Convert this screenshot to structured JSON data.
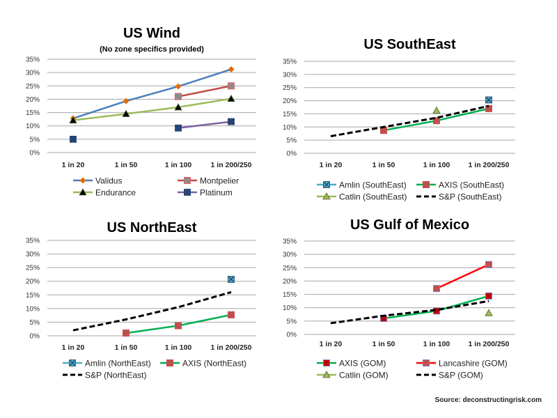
{
  "source_label": "Source: deconstructingrisk.com",
  "chart_data": [
    {
      "id": "us-wind",
      "type": "line",
      "title": "US Wind",
      "subtitle": "(No zone specifics provided)",
      "categories": [
        "1 in 20",
        "1 in 50",
        "1 in 100",
        "1 in 200/250"
      ],
      "xlabel": "",
      "ylabel": "",
      "ylim": [
        0,
        35
      ],
      "yticks": [
        "0%",
        "5%",
        "10%",
        "15%",
        "20%",
        "25%",
        "30%",
        "35%"
      ],
      "grid": true,
      "legend_position": "bottom",
      "series": [
        {
          "name": "Validus",
          "values": [
            12.8,
            19.3,
            24.8,
            31.2
          ],
          "line_color": "#4a7ebb",
          "marker": "diamond",
          "marker_color": "#e46c0a",
          "dashed": false
        },
        {
          "name": "Montpelier",
          "values": [
            null,
            null,
            21.0,
            25.0
          ],
          "line_color": "#be4b48",
          "marker": "square",
          "marker_color": "#8c8c8c",
          "marker_border": "#e06060",
          "dashed": false
        },
        {
          "name": "Endurance",
          "values": [
            12.1,
            14.5,
            17.0,
            20.2
          ],
          "line_color": "#9bbb59",
          "marker": "triangle",
          "marker_color": "#000000",
          "dashed": false
        },
        {
          "name": "Platinum",
          "values": [
            5.0,
            null,
            9.2,
            11.6
          ],
          "line_color": "#7d60a0",
          "marker": "xsquare",
          "marker_color": "#2c4d87",
          "dashed": false
        }
      ]
    },
    {
      "id": "us-southeast",
      "type": "line",
      "title": "US SouthEast",
      "subtitle": "",
      "categories": [
        "1 in 20",
        "1 in 50",
        "1 in 100",
        "1 in 200/250"
      ],
      "xlabel": "",
      "ylabel": "",
      "ylim": [
        0,
        35
      ],
      "yticks": [
        "0%",
        "5%",
        "10%",
        "15%",
        "20%",
        "25%",
        "30%",
        "35%"
      ],
      "grid": true,
      "legend_position": "bottom",
      "series": [
        {
          "name": "Amlin (SouthEast)",
          "values": [
            null,
            null,
            null,
            20.3
          ],
          "line_color": "#4bacc6",
          "marker": "xsquare",
          "marker_color": "#4bacc6",
          "dashed": false
        },
        {
          "name": "AXIS (SouthEast)",
          "values": [
            null,
            8.7,
            12.4,
            17.0
          ],
          "line_color": "#00b050",
          "marker": "square",
          "marker_color": "#c0504d",
          "dashed": false
        },
        {
          "name": "Catlin (SouthEast)",
          "values": [
            null,
            null,
            16.3,
            null
          ],
          "line_color": "#9bbb59",
          "marker": "triangle",
          "marker_color": "#9bbb59",
          "dashed": false
        },
        {
          "name": "S&P (SouthEast)",
          "values": [
            6.5,
            10.0,
            13.5,
            18.0
          ],
          "line_color": "#000000",
          "marker": "none",
          "marker_color": "#000000",
          "dashed": true
        }
      ]
    },
    {
      "id": "us-northeast",
      "type": "line",
      "title": "US NorthEast",
      "subtitle": "",
      "categories": [
        "1 in 20",
        "1 in 50",
        "1 in 100",
        "1 in 200/250"
      ],
      "xlabel": "",
      "ylabel": "",
      "ylim": [
        0,
        35
      ],
      "yticks": [
        "0%",
        "5%",
        "10%",
        "15%",
        "20%",
        "25%",
        "30%",
        "35%"
      ],
      "grid": true,
      "legend_position": "bottom",
      "series": [
        {
          "name": "Amlin (NorthEast)",
          "values": [
            null,
            null,
            null,
            20.7
          ],
          "line_color": "#4bacc6",
          "marker": "xsquare",
          "marker_color": "#4bacc6",
          "dashed": false
        },
        {
          "name": "AXIS (NorthEast)",
          "values": [
            null,
            1.0,
            3.7,
            7.7
          ],
          "line_color": "#00b050",
          "marker": "square",
          "marker_color": "#c0504d",
          "dashed": false
        },
        {
          "name": "S&P (NorthEast)",
          "values": [
            2.0,
            6.0,
            10.5,
            16.0
          ],
          "line_color": "#000000",
          "marker": "none",
          "marker_color": "#000000",
          "dashed": true
        }
      ]
    },
    {
      "id": "us-gulf-of-mexico",
      "type": "line",
      "title": "US Gulf of Mexico",
      "subtitle": "",
      "categories": [
        "1 in 20",
        "1 in 50",
        "1 in 100",
        "1 in 200/250"
      ],
      "xlabel": "",
      "ylabel": "",
      "ylim": [
        0,
        35
      ],
      "yticks": [
        "0%",
        "5%",
        "10%",
        "15%",
        "20%",
        "25%",
        "30%",
        "35%"
      ],
      "grid": true,
      "legend_position": "bottom",
      "series": [
        {
          "name": "AXIS (GOM)",
          "values": [
            null,
            6.0,
            8.8,
            14.4
          ],
          "line_color": "#00b050",
          "marker": "square",
          "marker_color": "#c00000",
          "marker_border": "#8080c0",
          "dashed": false
        },
        {
          "name": "Lancashire (GOM)",
          "values": [
            null,
            null,
            17.2,
            26.2
          ],
          "line_color": "#ff0000",
          "marker": "square",
          "marker_color": "#c0504d",
          "marker_border": "#8080c0",
          "dashed": false
        },
        {
          "name": "Catlin (GOM)",
          "values": [
            null,
            null,
            null,
            8.0
          ],
          "line_color": "#9bbb59",
          "marker": "triangle",
          "marker_color": "#9bbb59",
          "dashed": false
        },
        {
          "name": "S&P (GOM)",
          "values": [
            4.2,
            7.0,
            9.2,
            12.5
          ],
          "line_color": "#000000",
          "marker": "none",
          "marker_color": "#000000",
          "dashed": true
        }
      ]
    }
  ]
}
